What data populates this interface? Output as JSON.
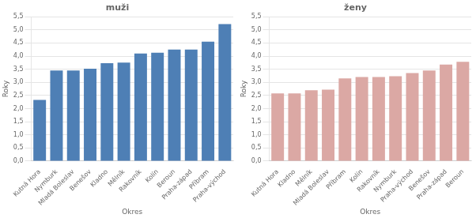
{
  "chart_data": [
    {
      "type": "bar",
      "title": "muži",
      "xlabel": "Okres",
      "ylabel": "Roky",
      "categories": [
        "Kutná Hora",
        "Nymburk",
        "Mladá Boleslav",
        "Benešov",
        "Kladno",
        "Mělník",
        "Rakovník",
        "Kolín",
        "Beroun",
        "Praha-západ",
        "Příbram",
        "Praha-východ"
      ],
      "values": [
        2.33,
        3.45,
        3.45,
        3.52,
        3.73,
        3.75,
        4.1,
        4.13,
        4.25,
        4.25,
        4.55,
        5.22
      ],
      "color": "#4e7fb5",
      "ylim": [
        0,
        5.5
      ],
      "yticks": [
        {
          "value": 0.0,
          "label": "0,0"
        },
        {
          "value": 0.5,
          "label": "0,5"
        },
        {
          "value": 1.0,
          "label": "1,0"
        },
        {
          "value": 1.5,
          "label": "1,5"
        },
        {
          "value": 2.0,
          "label": "2,0"
        },
        {
          "value": 2.5,
          "label": "2,5"
        },
        {
          "value": 3.0,
          "label": "3,0"
        },
        {
          "value": 3.5,
          "label": "3,5"
        },
        {
          "value": 4.0,
          "label": "4,0"
        },
        {
          "value": 4.5,
          "label": "4,5"
        },
        {
          "value": 5.0,
          "label": "5,0"
        },
        {
          "value": 5.5,
          "label": "5,5"
        }
      ],
      "grid": true
    },
    {
      "type": "bar",
      "title": "ženy",
      "xlabel": "Okres",
      "ylabel": "Roky",
      "categories": [
        "Kutná Hora",
        "Kladno",
        "Mělník",
        "Mladá Boleslav",
        "Příbram",
        "Kolín",
        "Rakovník",
        "Nymburk",
        "Praha-východ",
        "Benešov",
        "Praha-západ",
        "Beroun"
      ],
      "values": [
        2.58,
        2.58,
        2.7,
        2.72,
        3.15,
        3.2,
        3.2,
        3.23,
        3.35,
        3.45,
        3.68,
        3.78
      ],
      "color": "#dba8a4",
      "ylim": [
        0,
        5.5
      ],
      "yticks": [
        {
          "value": 0.0,
          "label": "0,0"
        },
        {
          "value": 0.5,
          "label": "0,5"
        },
        {
          "value": 1.0,
          "label": "1,0"
        },
        {
          "value": 1.5,
          "label": "1,5"
        },
        {
          "value": 2.0,
          "label": "2,0"
        },
        {
          "value": 2.5,
          "label": "2,5"
        },
        {
          "value": 3.0,
          "label": "3,0"
        },
        {
          "value": 3.5,
          "label": "3,5"
        },
        {
          "value": 4.0,
          "label": "4,0"
        },
        {
          "value": 4.5,
          "label": "4,5"
        },
        {
          "value": 5.0,
          "label": "5,0"
        },
        {
          "value": 5.5,
          "label": "5,5"
        }
      ],
      "grid": true
    }
  ]
}
